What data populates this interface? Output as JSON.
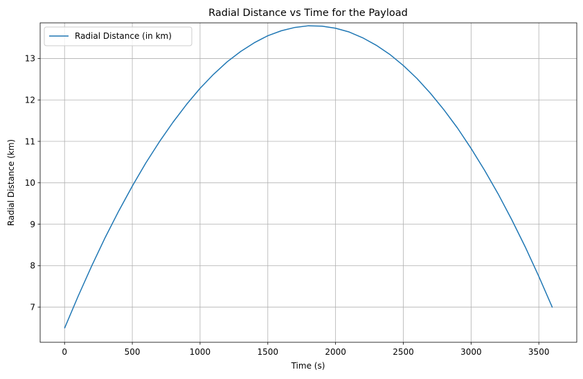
{
  "chart_data": {
    "type": "line",
    "title": "Radial Distance vs Time for the Payload",
    "xlabel": "Time (s)",
    "ylabel": "Radial Distance (km)",
    "xlim": [
      -180,
      3780
    ],
    "ylim": [
      6.15,
      13.86
    ],
    "xticks": [
      0,
      500,
      1000,
      1500,
      2000,
      2500,
      3000,
      3500
    ],
    "yticks": [
      7,
      8,
      9,
      10,
      11,
      12,
      13
    ],
    "grid": true,
    "legend_position": "top-left",
    "series": [
      {
        "name": "Radial Distance (in km)",
        "color": "#1f77b4",
        "x": [
          0,
          100,
          200,
          300,
          400,
          500,
          600,
          700,
          800,
          900,
          1000,
          1100,
          1200,
          1300,
          1400,
          1500,
          1600,
          1700,
          1800,
          1900,
          2000,
          2100,
          2200,
          2300,
          2400,
          2500,
          2600,
          2700,
          2800,
          2900,
          3000,
          3100,
          3200,
          3300,
          3400,
          3500,
          3600
        ],
        "y": [
          6.49,
          7.26,
          7.99,
          8.68,
          9.32,
          9.92,
          10.48,
          10.99,
          11.46,
          11.89,
          12.28,
          12.62,
          12.92,
          13.17,
          13.38,
          13.55,
          13.67,
          13.75,
          13.79,
          13.78,
          13.73,
          13.64,
          13.5,
          13.32,
          13.1,
          12.83,
          12.52,
          12.16,
          11.76,
          11.32,
          10.83,
          10.3,
          9.73,
          9.11,
          8.45,
          7.74,
          6.99
        ]
      }
    ]
  }
}
